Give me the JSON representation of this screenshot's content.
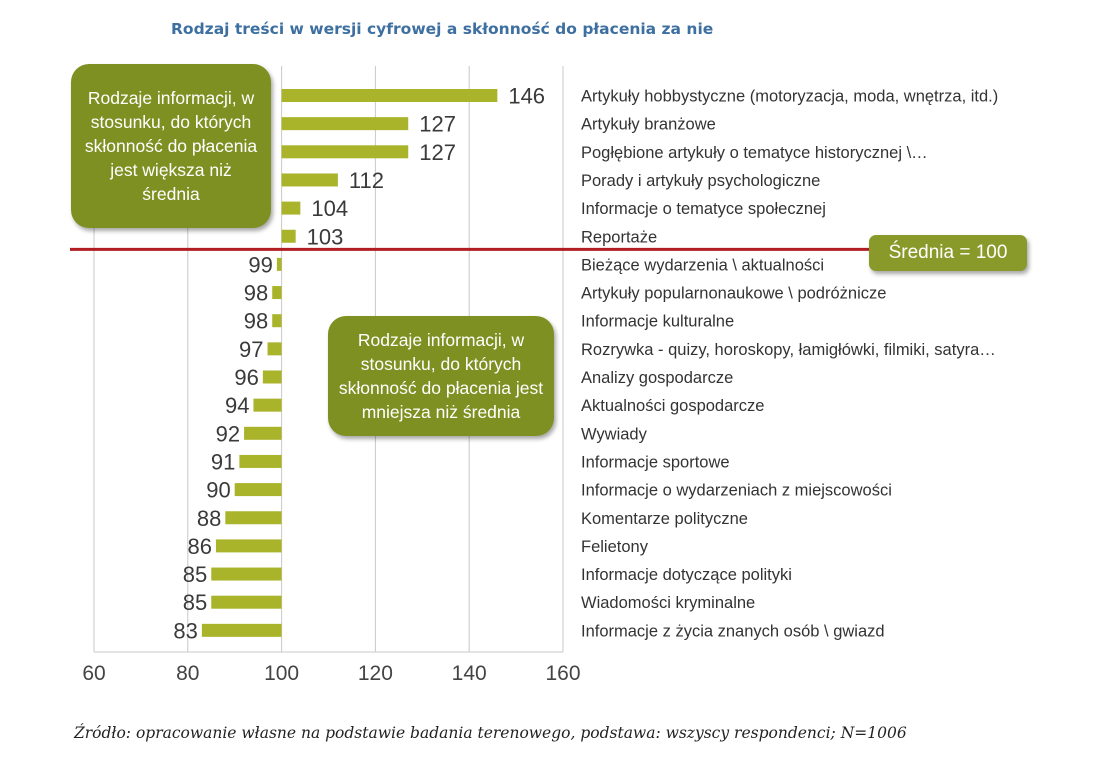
{
  "chart_data": {
    "type": "bar",
    "orientation": "horizontal",
    "title": "Rodzaj treści w wersji cyfrowej a skłonność do płacenia za nie",
    "baseline": 100,
    "xlim": [
      60,
      160
    ],
    "xticks": [
      "60",
      "80",
      "100",
      "120",
      "140",
      "160"
    ],
    "categories": [
      "Artykuły hobbystyczne (motoryzacja, moda, wnętrza, itd.)",
      "Artykuły branżowe",
      "Pogłębione artykuły o tematyce historycznej \\…",
      "Porady i artykuły psychologiczne",
      "Informacje o tematyce społecznej",
      "Reportaże",
      "Bieżące wydarzenia \\ aktualności",
      "Artykuły popularnonaukowe \\ podróżnicze",
      "Informacje kulturalne",
      "Rozrywka - quizy, horoskopy, łamigłówki, filmiki, satyra…",
      "Analizy gospodarcze",
      "Aktualności gospodarcze",
      "Wywiady",
      "Informacje sportowe",
      "Informacje o wydarzeniach z miejscowości",
      "Komentarze polityczne",
      "Felietony",
      "Informacje dotyczące polityki",
      "Wiadomości kryminalne",
      "Informacje z życia znanych osób \\ gwiazd"
    ],
    "values": [
      146,
      127,
      127,
      112,
      104,
      103,
      99,
      98,
      98,
      97,
      96,
      94,
      92,
      91,
      90,
      88,
      86,
      85,
      85,
      83
    ],
    "bar_color": "#a9b42a",
    "average_line_color": "#b01e23"
  },
  "callouts": {
    "above": "Rodzaje informacji, w stosunku, do których skłonność do płacenia jest większa niż średnia",
    "below": "Rodzaje informacji, w stosunku, do których skłonność do płacenia jest mniejsza niż średnia",
    "average_badge": "Średnia = 100"
  },
  "colors": {
    "callout_bg": "#7f9023",
    "title": "#3d6fa0"
  },
  "source": "Źródło: opracowanie własne na podstawie badania terenowego, podstawa: wszyscy respondenci; N=1006"
}
